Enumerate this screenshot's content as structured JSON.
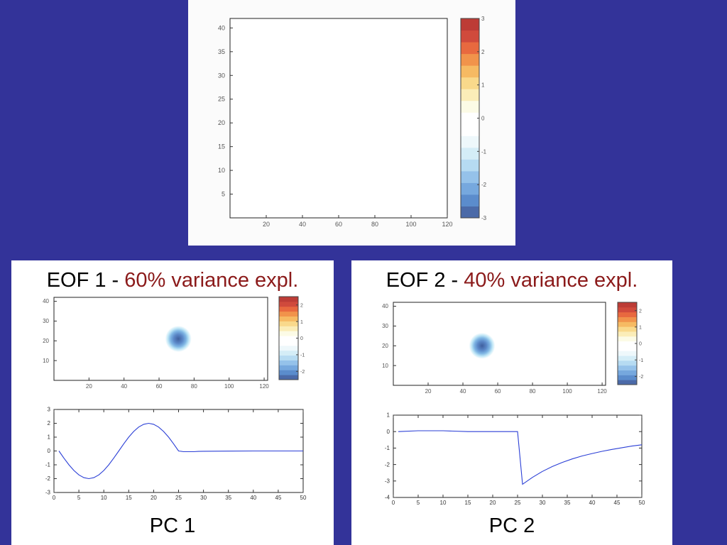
{
  "chart_data": [
    {
      "type": "heatmap",
      "xlim": [
        0,
        120
      ],
      "ylim": [
        0,
        42
      ],
      "xticks": [
        20,
        40,
        60,
        80,
        100,
        120
      ],
      "yticks": [
        5,
        10,
        15,
        20,
        25,
        30,
        35,
        40
      ],
      "colorbar": {
        "min": -3,
        "max": 3,
        "ticks": [
          -3,
          -2,
          -1,
          0,
          1,
          2,
          3
        ]
      },
      "blob": null
    },
    {
      "type": "heatmap",
      "title_prefix": "EOF 1 - ",
      "title_highlight": "60% variance expl.",
      "xlim": [
        0,
        122
      ],
      "ylim": [
        0,
        42
      ],
      "xticks": [
        20,
        40,
        60,
        80,
        100,
        120
      ],
      "yticks": [
        10,
        20,
        30,
        40
      ],
      "colorbar": {
        "min": -2.5,
        "max": 2.5,
        "ticks": [
          -2,
          -1,
          0,
          1,
          2
        ]
      },
      "blob": {
        "x": 71,
        "y": 21
      }
    },
    {
      "type": "line",
      "label": "PC 1",
      "xlim": [
        0,
        50
      ],
      "ylim": [
        -3,
        3
      ],
      "xticks": [
        0,
        5,
        10,
        15,
        20,
        25,
        30,
        35,
        40,
        45,
        50
      ],
      "yticks": [
        -3,
        -2,
        -1,
        0,
        1,
        2,
        3
      ],
      "x": [
        1,
        2,
        3,
        4,
        5,
        6,
        7,
        8,
        9,
        10,
        11,
        12,
        13,
        14,
        15,
        16,
        17,
        18,
        19,
        20,
        21,
        22,
        23,
        24,
        25,
        26,
        27,
        28,
        29,
        30,
        35,
        40,
        45,
        50
      ],
      "y": [
        0,
        -0.52,
        -1.0,
        -1.41,
        -1.73,
        -1.93,
        -2.0,
        -1.93,
        -1.73,
        -1.41,
        -1.0,
        -0.52,
        0,
        0.52,
        1.0,
        1.41,
        1.73,
        1.93,
        2.0,
        1.93,
        1.73,
        1.41,
        1.0,
        0.52,
        0,
        -0.05,
        -0.05,
        -0.05,
        -0.03,
        -0.02,
        -0.01,
        0,
        0,
        0
      ]
    },
    {
      "type": "heatmap",
      "title_prefix": "EOF 2 - ",
      "title_highlight": "40% variance expl.",
      "xlim": [
        0,
        122
      ],
      "ylim": [
        0,
        42
      ],
      "xticks": [
        20,
        40,
        60,
        80,
        100,
        120
      ],
      "yticks": [
        10,
        20,
        30,
        40
      ],
      "colorbar": {
        "min": -2.5,
        "max": 2.5,
        "ticks": [
          -2,
          -1,
          0,
          1,
          2
        ]
      },
      "blob": {
        "x": 51,
        "y": 20
      }
    },
    {
      "type": "line",
      "label": "PC 2",
      "xlim": [
        0,
        50
      ],
      "ylim": [
        -4,
        1
      ],
      "xticks": [
        0,
        5,
        10,
        15,
        20,
        25,
        30,
        35,
        40,
        45,
        50
      ],
      "yticks": [
        -4,
        -3,
        -2,
        -1,
        0,
        1
      ],
      "x": [
        1,
        5,
        10,
        15,
        20,
        25,
        26,
        28,
        30,
        32,
        34,
        36,
        38,
        40,
        42,
        44,
        46,
        48,
        50
      ],
      "y": [
        0,
        0.05,
        0.05,
        0,
        0,
        0,
        -3.2,
        -2.78,
        -2.42,
        -2.12,
        -1.87,
        -1.66,
        -1.48,
        -1.33,
        -1.2,
        -1.08,
        -0.98,
        -0.88,
        -0.8
      ]
    }
  ]
}
